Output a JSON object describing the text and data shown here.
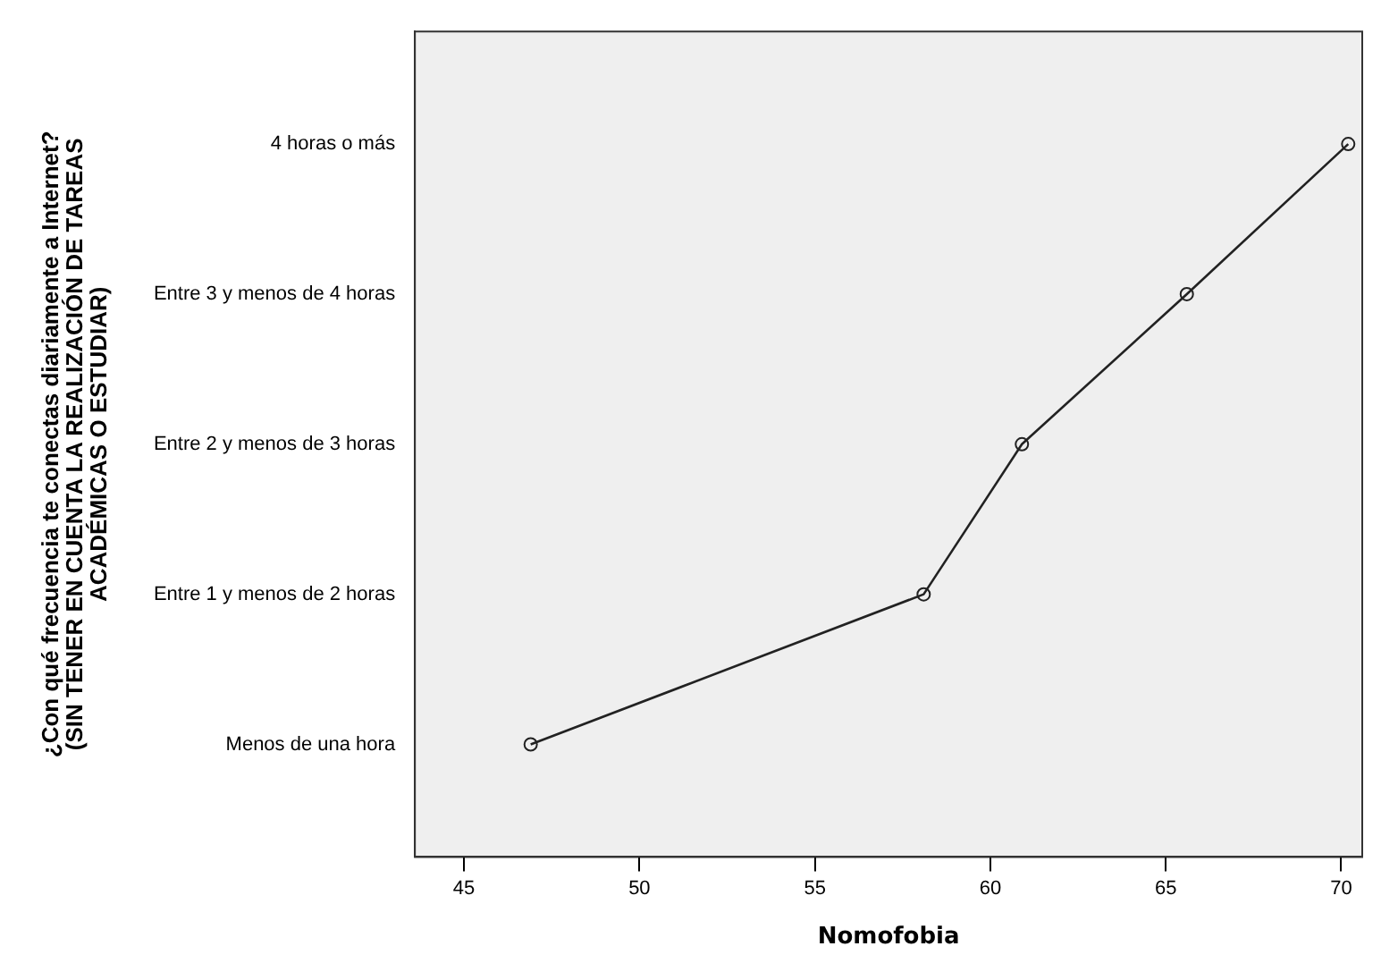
{
  "chart_data": {
    "type": "line",
    "orientation": "horizontal",
    "categories": [
      "4 horas o más",
      "Entre 3 y menos de 4 horas",
      "Entre 2 y menos de 3 horas",
      "Entre 1 y menos de 2 horas",
      "Menos de una hora"
    ],
    "series": [
      {
        "color": "#222222",
        "values": [
          70.2,
          65.6,
          60.9,
          58.1,
          46.9
        ]
      }
    ],
    "xlim": [
      43.6,
      70.6
    ],
    "xticks": [
      45,
      50,
      55,
      60,
      65,
      70
    ],
    "xlabel": "Nomofobia",
    "ylabel": "¿Con qué frecuencia te conectas diariamente a Internet?\n(SIN TENER EN CUENTA LA REALIZACIÓN DE TAREAS\nACADÉMICAS O ESTUDIAR)",
    "marker": "circle",
    "grid": false,
    "legend": false
  }
}
